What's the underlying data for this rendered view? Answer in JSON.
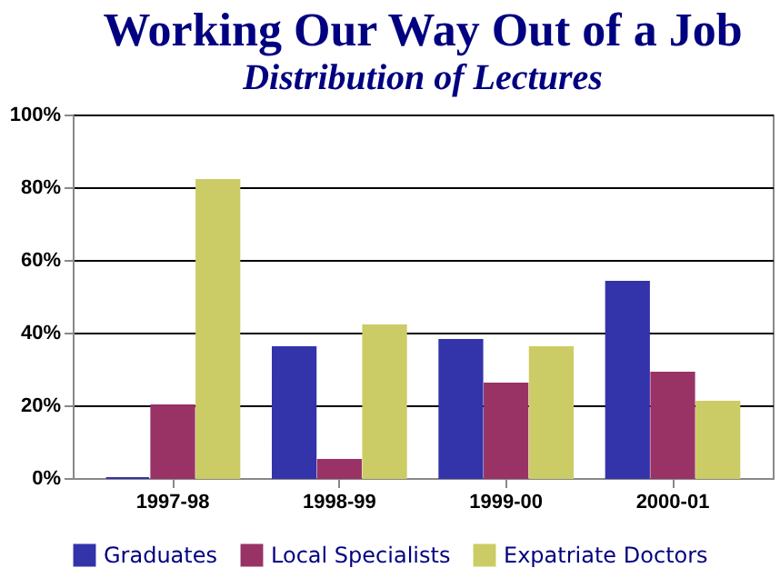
{
  "chart_data": {
    "type": "bar",
    "title": "Working Our Way Out of a Job",
    "subtitle": "Distribution of Lectures",
    "categories": [
      "1997-98",
      "1998-99",
      "1999-00",
      "2000-01"
    ],
    "series": [
      {
        "name": "Graduates",
        "color": "#3333aa",
        "values": [
          0,
          36,
          38,
          54
        ]
      },
      {
        "name": "Local Specialists",
        "color": "#993366",
        "values": [
          20,
          5,
          26,
          29
        ]
      },
      {
        "name": "Expatriate Doctors",
        "color": "#cccc66",
        "values": [
          82,
          42,
          36,
          21
        ]
      }
    ],
    "ylim": [
      0,
      100
    ],
    "yticks": [
      {
        "value": 0,
        "label": "0%"
      },
      {
        "value": 20,
        "label": "20%"
      },
      {
        "value": 40,
        "label": "40%"
      },
      {
        "value": 60,
        "label": "60%"
      },
      {
        "value": 80,
        "label": "80%"
      },
      {
        "value": 100,
        "label": "100%"
      }
    ],
    "grid": "y",
    "legend": "bottom"
  }
}
